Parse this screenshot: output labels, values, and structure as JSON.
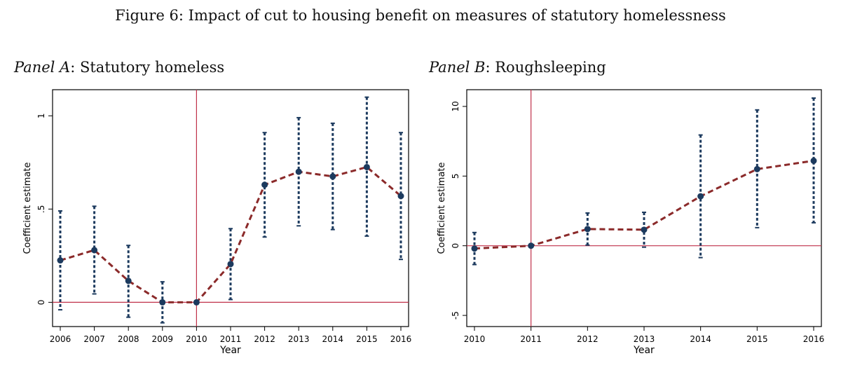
{
  "figure_title": "Figure 6: Impact of cut to housing benefit on measures of statutory homelessness",
  "colors": {
    "line": "#8b2a2a",
    "marker": "#1c3a5e",
    "errorbar": "#1c3a5e",
    "reference": "#c0314a",
    "axis": "#000000"
  },
  "chart_data": [
    {
      "type": "line",
      "panel_label": "Panel A",
      "panel_name": ": Statutory homeless",
      "xlabel": "Year",
      "ylabel": "Coefficient estimate",
      "xlim": [
        2006,
        2016
      ],
      "ylim": [
        -0.13,
        1.14
      ],
      "x_ticks": [
        2006,
        2007,
        2008,
        2009,
        2010,
        2011,
        2012,
        2013,
        2014,
        2015,
        2016
      ],
      "y_ticks": [
        0,
        0.5,
        1
      ],
      "y_tick_labels": [
        "0",
        ".5",
        "1"
      ],
      "vline": 2010,
      "hline": 0,
      "points": [
        {
          "x": 2006,
          "y": 0.225,
          "lo": -0.04,
          "hi": 0.49
        },
        {
          "x": 2007,
          "y": 0.28,
          "lo": 0.045,
          "hi": 0.515
        },
        {
          "x": 2008,
          "y": 0.115,
          "lo": -0.08,
          "hi": 0.305
        },
        {
          "x": 2009,
          "y": 0.0,
          "lo": -0.11,
          "hi": 0.11
        },
        {
          "x": 2010,
          "y": 0.0,
          "lo": 0.0,
          "hi": 0.0
        },
        {
          "x": 2011,
          "y": 0.205,
          "lo": 0.015,
          "hi": 0.395
        },
        {
          "x": 2012,
          "y": 0.63,
          "lo": 0.35,
          "hi": 0.91
        },
        {
          "x": 2013,
          "y": 0.7,
          "lo": 0.41,
          "hi": 0.99
        },
        {
          "x": 2014,
          "y": 0.675,
          "lo": 0.39,
          "hi": 0.96
        },
        {
          "x": 2015,
          "y": 0.725,
          "lo": 0.355,
          "hi": 1.1
        },
        {
          "x": 2016,
          "y": 0.57,
          "lo": 0.23,
          "hi": 0.91
        }
      ]
    },
    {
      "type": "line",
      "panel_label": "Panel B",
      "panel_name": ": Roughsleeping",
      "xlabel": "Year",
      "ylabel": "Coefficient estimate",
      "xlim": [
        2010,
        2016
      ],
      "ylim": [
        -5.8,
        11.2
      ],
      "x_ticks": [
        2010,
        2011,
        2012,
        2013,
        2014,
        2015,
        2016
      ],
      "y_ticks": [
        -5,
        0,
        5,
        10
      ],
      "y_tick_labels": [
        "-5",
        "0",
        "5",
        "10"
      ],
      "vline": 2011,
      "hline": 0,
      "points": [
        {
          "x": 2010,
          "y": -0.2,
          "lo": -1.35,
          "hi": 0.95
        },
        {
          "x": 2011,
          "y": 0.0,
          "lo": 0.0,
          "hi": 0.0
        },
        {
          "x": 2012,
          "y": 1.2,
          "lo": 0.05,
          "hi": 2.35
        },
        {
          "x": 2013,
          "y": 1.15,
          "lo": -0.1,
          "hi": 2.4
        },
        {
          "x": 2014,
          "y": 3.55,
          "lo": -0.85,
          "hi": 7.95
        },
        {
          "x": 2015,
          "y": 5.5,
          "lo": 1.3,
          "hi": 9.75
        },
        {
          "x": 2016,
          "y": 6.1,
          "lo": 1.65,
          "hi": 10.6
        }
      ]
    }
  ]
}
